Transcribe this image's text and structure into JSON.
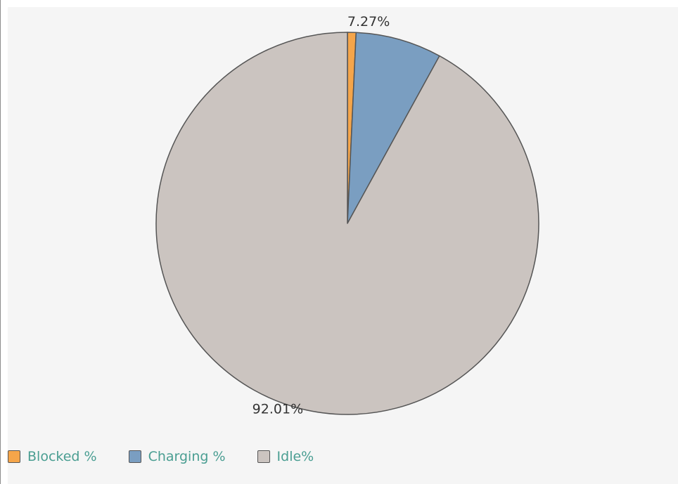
{
  "chart_data": {
    "type": "pie",
    "slices": [
      {
        "name": "Blocked %",
        "value": 0.72,
        "label": "",
        "color": "#f5a54a"
      },
      {
        "name": "Charging %",
        "value": 7.27,
        "label": "7.27%",
        "color": "#7a9ec1"
      },
      {
        "name": "Idle%",
        "value": 92.01,
        "label": "92.01%",
        "color": "#cbc4c0"
      }
    ],
    "start_angle": "12 o'clock",
    "direction": "clockwise",
    "legend_position": "bottom-left"
  }
}
